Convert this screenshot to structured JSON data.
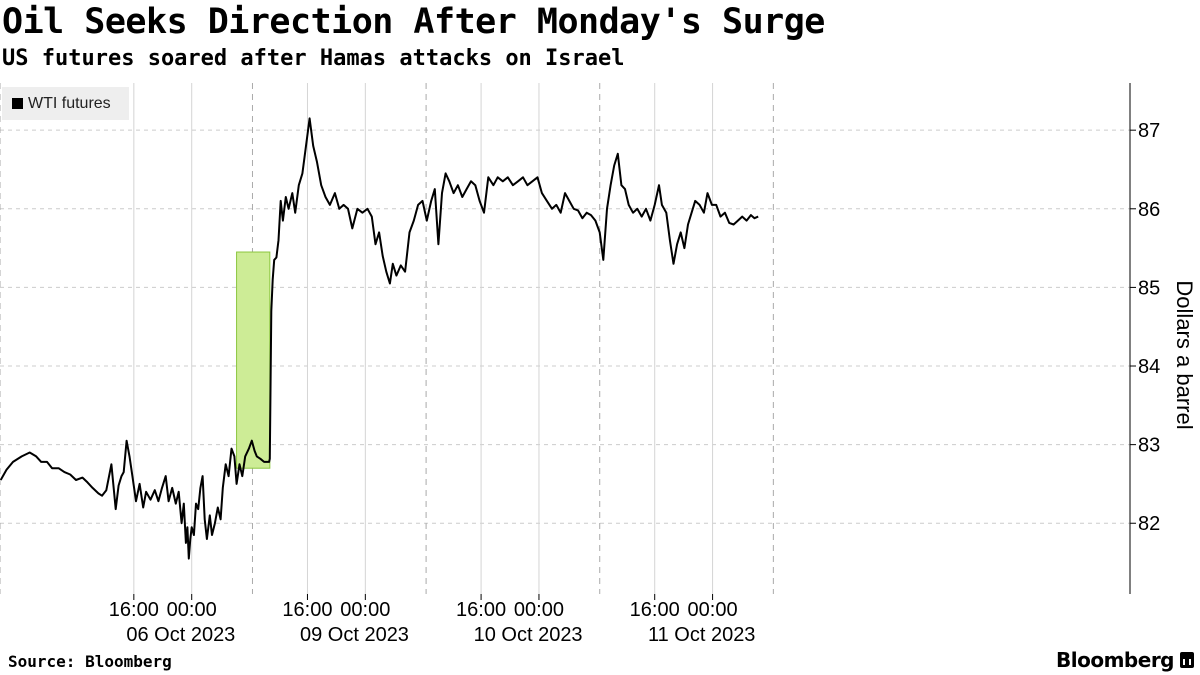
{
  "header": {
    "title": "Oil Seeks Direction After Monday's Surge",
    "subtitle": "US futures soared after Hamas attacks on Israel"
  },
  "footer": {
    "source": "Source: Bloomberg",
    "brand": "Bloomberg",
    "brand_icon": "bloomberg-terminal-icon"
  },
  "colors": {
    "line": "#000000",
    "highlight_fill": "#cdec96",
    "highlight_stroke": "#8cc63f",
    "grid": "#cccccc",
    "legend_bg": "#eeeeee"
  },
  "chart_data": {
    "type": "line",
    "title": "Oil Seeks Direction After Monday's Surge",
    "subtitle": "US futures soared after Hamas attacks on Israel",
    "xlabel": "",
    "ylabel": "Dollars a barrel",
    "ylim": [
      81.1,
      87.6
    ],
    "yticks": [
      82,
      83,
      84,
      85,
      86,
      87
    ],
    "y_axis_side": "right",
    "grid": true,
    "legend_placement": "top-left",
    "x_unit": "hours",
    "xlim": [
      -26.5,
      129.7
    ],
    "x_ticks": [
      {
        "x": -8,
        "label": "16:00",
        "sublabel": "06 Oct 2023"
      },
      {
        "x": 0,
        "label": "00:00",
        "sublabel": ""
      },
      {
        "x": 16,
        "label": "16:00",
        "sublabel": "09 Oct 2023"
      },
      {
        "x": 24,
        "label": "00:00",
        "sublabel": ""
      },
      {
        "x": 40,
        "label": "16:00",
        "sublabel": "10 Oct 2023"
      },
      {
        "x": 48,
        "label": "00:00",
        "sublabel": ""
      },
      {
        "x": 64,
        "label": "16:00",
        "sublabel": "11 Oct 2023"
      },
      {
        "x": 72,
        "label": "00:00",
        "sublabel": ""
      }
    ],
    "session_breaks": [
      -26.5,
      8.4,
      32.4,
      56.4,
      80.4
    ],
    "highlight": {
      "x0": 6.2,
      "x1": 10.8,
      "y0": 82.7,
      "y1": 85.45
    },
    "series": [
      {
        "name": "WTI futures",
        "points": [
          [
            -26.4,
            82.55
          ],
          [
            -25.6,
            82.68
          ],
          [
            -24.7,
            82.78
          ],
          [
            -23.5,
            82.85
          ],
          [
            -22.4,
            82.9
          ],
          [
            -21.5,
            82.85
          ],
          [
            -20.8,
            82.78
          ],
          [
            -20,
            82.78
          ],
          [
            -19.3,
            82.7
          ],
          [
            -18.4,
            82.7
          ],
          [
            -17.6,
            82.65
          ],
          [
            -16.8,
            82.62
          ],
          [
            -16,
            82.55
          ],
          [
            -15.1,
            82.58
          ],
          [
            -14.4,
            82.52
          ],
          [
            -13.7,
            82.45
          ],
          [
            -12.9,
            82.38
          ],
          [
            -12.4,
            82.35
          ],
          [
            -11.8,
            82.42
          ],
          [
            -11.1,
            82.75
          ],
          [
            -10.5,
            82.18
          ],
          [
            -10.1,
            82.48
          ],
          [
            -9.7,
            82.6
          ],
          [
            -9.4,
            82.65
          ],
          [
            -9,
            83.05
          ],
          [
            -8.6,
            82.85
          ],
          [
            -8.2,
            82.6
          ],
          [
            -7.7,
            82.28
          ],
          [
            -7.2,
            82.5
          ],
          [
            -6.7,
            82.2
          ],
          [
            -6.3,
            82.4
          ],
          [
            -5.7,
            82.3
          ],
          [
            -5.1,
            82.42
          ],
          [
            -4.6,
            82.28
          ],
          [
            -4.1,
            82.45
          ],
          [
            -3.6,
            82.6
          ],
          [
            -3.2,
            82.28
          ],
          [
            -2.7,
            82.45
          ],
          [
            -2.2,
            82.25
          ],
          [
            -1.8,
            82.4
          ],
          [
            -1.4,
            82.0
          ],
          [
            -1.1,
            82.25
          ],
          [
            -0.8,
            81.75
          ],
          [
            -0.6,
            81.95
          ],
          [
            -0.4,
            81.55
          ],
          [
            -0.2,
            81.8
          ],
          [
            0,
            81.95
          ],
          [
            0.3,
            81.85
          ],
          [
            0.6,
            82.25
          ],
          [
            0.9,
            82.18
          ],
          [
            1.2,
            82.45
          ],
          [
            1.5,
            82.6
          ],
          [
            1.8,
            82.05
          ],
          [
            2.1,
            81.8
          ],
          [
            2.5,
            82.1
          ],
          [
            2.8,
            81.85
          ],
          [
            3.2,
            82.0
          ],
          [
            3.6,
            82.2
          ],
          [
            4.0,
            82.05
          ],
          [
            4.3,
            82.45
          ],
          [
            4.7,
            82.75
          ],
          [
            5.1,
            82.6
          ],
          [
            5.5,
            82.95
          ],
          [
            5.9,
            82.85
          ],
          [
            6.2,
            82.5
          ],
          [
            6.6,
            82.75
          ],
          [
            7.0,
            82.6
          ],
          [
            7.4,
            82.85
          ],
          [
            7.9,
            82.95
          ],
          [
            8.3,
            83.05
          ],
          [
            8.7,
            82.92
          ],
          [
            9.0,
            82.85
          ],
          [
            9.5,
            82.82
          ],
          [
            10.0,
            82.78
          ],
          [
            10.4,
            82.78
          ],
          [
            10.7,
            82.78
          ],
          [
            10.8,
            82.82
          ],
          [
            11.0,
            84.7
          ],
          [
            11.2,
            85.1
          ],
          [
            11.4,
            85.35
          ],
          [
            11.7,
            85.38
          ],
          [
            12.0,
            85.6
          ],
          [
            12.3,
            86.1
          ],
          [
            12.6,
            85.85
          ],
          [
            13.0,
            86.15
          ],
          [
            13.4,
            86.0
          ],
          [
            13.9,
            86.2
          ],
          [
            14.3,
            85.95
          ],
          [
            14.8,
            86.3
          ],
          [
            15.3,
            86.45
          ],
          [
            15.8,
            86.8
          ],
          [
            16.3,
            87.15
          ],
          [
            16.8,
            86.8
          ],
          [
            17.3,
            86.6
          ],
          [
            17.9,
            86.3
          ],
          [
            18.5,
            86.15
          ],
          [
            19.1,
            86.05
          ],
          [
            19.8,
            86.2
          ],
          [
            20.4,
            86.0
          ],
          [
            21.0,
            86.05
          ],
          [
            21.6,
            86.0
          ],
          [
            22.2,
            85.75
          ],
          [
            22.9,
            86.0
          ],
          [
            23.6,
            85.95
          ],
          [
            24.3,
            86.0
          ],
          [
            24.9,
            85.9
          ],
          [
            25.4,
            85.55
          ],
          [
            25.9,
            85.7
          ],
          [
            26.4,
            85.4
          ],
          [
            26.9,
            85.2
          ],
          [
            27.4,
            85.05
          ],
          [
            27.8,
            85.3
          ],
          [
            28.3,
            85.15
          ],
          [
            28.9,
            85.28
          ],
          [
            29.5,
            85.2
          ],
          [
            30.1,
            85.7
          ],
          [
            30.7,
            85.85
          ],
          [
            31.3,
            86.05
          ],
          [
            31.9,
            86.1
          ],
          [
            32.5,
            85.85
          ],
          [
            33.1,
            86.1
          ],
          [
            33.6,
            86.25
          ],
          [
            34.1,
            85.55
          ],
          [
            34.6,
            86.2
          ],
          [
            35.1,
            86.45
          ],
          [
            35.6,
            86.35
          ],
          [
            36.2,
            86.2
          ],
          [
            36.8,
            86.3
          ],
          [
            37.4,
            86.15
          ],
          [
            38.0,
            86.25
          ],
          [
            38.6,
            86.35
          ],
          [
            39.2,
            86.3
          ],
          [
            39.8,
            86.1
          ],
          [
            40.4,
            85.95
          ],
          [
            41.0,
            86.4
          ],
          [
            41.7,
            86.3
          ],
          [
            42.3,
            86.4
          ],
          [
            43.0,
            86.35
          ],
          [
            43.7,
            86.4
          ],
          [
            44.4,
            86.3
          ],
          [
            45.1,
            86.35
          ],
          [
            45.8,
            86.4
          ],
          [
            46.4,
            86.3
          ],
          [
            47.1,
            86.35
          ],
          [
            47.8,
            86.4
          ],
          [
            48.4,
            86.2
          ],
          [
            49.1,
            86.1
          ],
          [
            49.8,
            86.0
          ],
          [
            50.4,
            86.05
          ],
          [
            51.0,
            85.95
          ],
          [
            51.6,
            86.2
          ],
          [
            52.2,
            86.1
          ],
          [
            52.8,
            86.0
          ],
          [
            53.4,
            85.98
          ],
          [
            54.0,
            85.88
          ],
          [
            54.6,
            85.95
          ],
          [
            55.2,
            85.92
          ],
          [
            55.8,
            85.85
          ],
          [
            56.4,
            85.7
          ],
          [
            56.9,
            85.35
          ],
          [
            57.4,
            86.0
          ],
          [
            57.9,
            86.3
          ],
          [
            58.4,
            86.55
          ],
          [
            58.9,
            86.7
          ],
          [
            59.4,
            86.3
          ],
          [
            59.9,
            86.25
          ],
          [
            60.4,
            86.05
          ],
          [
            61.0,
            85.95
          ],
          [
            61.6,
            86.0
          ],
          [
            62.2,
            85.9
          ],
          [
            62.8,
            86.0
          ],
          [
            63.4,
            85.85
          ],
          [
            64.0,
            86.05
          ],
          [
            64.6,
            86.3
          ],
          [
            65.0,
            86.05
          ],
          [
            65.6,
            85.95
          ],
          [
            66.1,
            85.6
          ],
          [
            66.6,
            85.3
          ],
          [
            67.1,
            85.55
          ],
          [
            67.6,
            85.7
          ],
          [
            68.1,
            85.5
          ],
          [
            68.6,
            85.8
          ],
          [
            69.1,
            85.95
          ],
          [
            69.6,
            86.1
          ],
          [
            70.2,
            86.05
          ],
          [
            70.8,
            85.95
          ],
          [
            71.3,
            86.2
          ],
          [
            71.9,
            86.05
          ],
          [
            72.5,
            86.05
          ],
          [
            73.1,
            85.9
          ],
          [
            73.7,
            85.95
          ],
          [
            74.3,
            85.82
          ],
          [
            74.9,
            85.8
          ],
          [
            75.5,
            85.85
          ],
          [
            76.1,
            85.9
          ],
          [
            76.7,
            85.85
          ],
          [
            77.3,
            85.92
          ],
          [
            77.8,
            85.88
          ],
          [
            78.3,
            85.9
          ]
        ]
      }
    ]
  }
}
